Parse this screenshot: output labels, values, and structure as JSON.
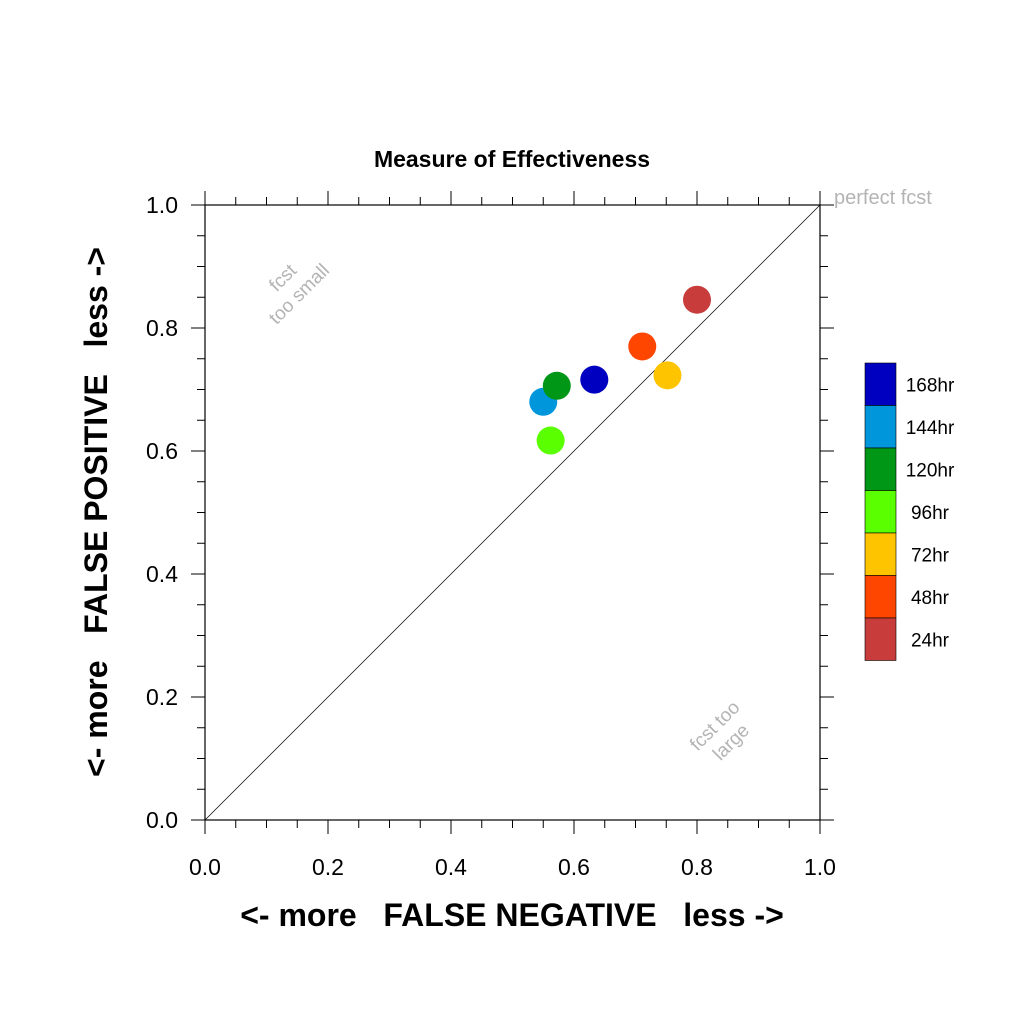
{
  "chart_data": {
    "type": "scatter",
    "title": "Measure of Effectiveness",
    "xlabel": "<- more   FALSE NEGATIVE   less ->",
    "ylabel": "<- more   FALSE POSITIVE   less ->",
    "xlim": [
      0,
      1
    ],
    "ylim": [
      0,
      1
    ],
    "xticks": [
      "0.0",
      "0.2",
      "0.4",
      "0.6",
      "0.8",
      "1.0"
    ],
    "yticks": [
      "0.0",
      "0.2",
      "0.4",
      "0.6",
      "0.8",
      "1.0"
    ],
    "tick_values": [
      0,
      0.2,
      0.4,
      0.6,
      0.8,
      1.0
    ],
    "grid": false,
    "legend_position": "right",
    "annotations": {
      "perfect": "perfect fcst",
      "small_line1": "fcst",
      "small_line2": "too small",
      "large_line1": "fcst too",
      "large_line2": "large"
    },
    "series": [
      {
        "name": "168hr",
        "color": "#0000c0",
        "x": 0.633,
        "y": 0.716
      },
      {
        "name": "144hr",
        "color": "#0096dc",
        "x": 0.55,
        "y": 0.68
      },
      {
        "name": "120hr",
        "color": "#009616",
        "x": 0.572,
        "y": 0.706
      },
      {
        "name": "96hr",
        "color": "#5aff00",
        "x": 0.562,
        "y": 0.617
      },
      {
        "name": "72hr",
        "color": "#ffc400",
        "x": 0.752,
        "y": 0.723
      },
      {
        "name": "48hr",
        "color": "#ff4600",
        "x": 0.711,
        "y": 0.77
      },
      {
        "name": "24hr",
        "color": "#c83c3c",
        "x": 0.8,
        "y": 0.846
      }
    ]
  }
}
